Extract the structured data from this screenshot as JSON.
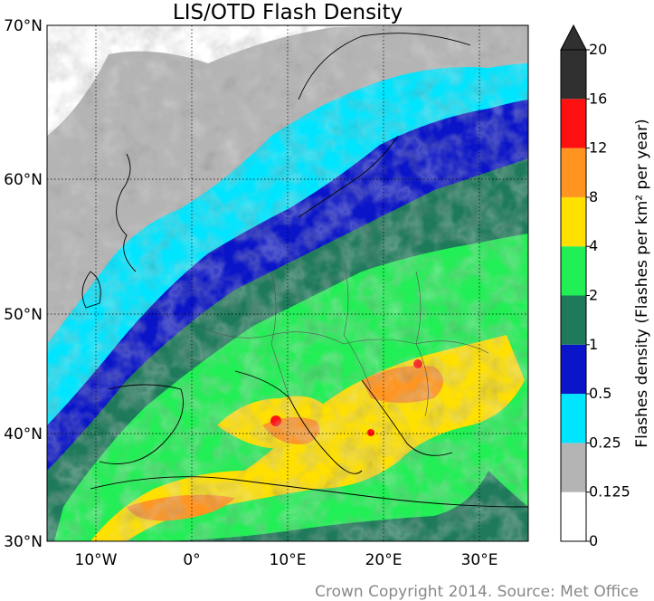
{
  "title": "LIS/OTD Flash Density",
  "footer": "Crown Copyright 2014. Source: Met Office",
  "colorbar": {
    "label": "Flashes density (Flashes per km² per year)",
    "ticks": [
      "0",
      "0.125",
      "0.25",
      "0.5",
      "1",
      "2",
      "4",
      "8",
      "12",
      "16",
      "20"
    ],
    "colors": [
      "#ffffff",
      "#b4b4b4",
      "#00e5ff",
      "#0a14c8",
      "#1e7a5a",
      "#22ee55",
      "#ffe000",
      "#ff9520",
      "#ff1010",
      "#303030"
    ],
    "extend": "max"
  },
  "map": {
    "lon_ticks": [
      "10°W",
      "0°",
      "10°E",
      "20°E",
      "30°E"
    ],
    "lat_ticks": [
      "70°N",
      "60°N",
      "50°N",
      "40°N",
      "30°N"
    ],
    "lon_values": [
      -10,
      0,
      10,
      20,
      30
    ],
    "lat_values": [
      70,
      60,
      50,
      40,
      30
    ],
    "lon_range": [
      -15,
      35
    ],
    "lat_range": [
      30,
      70
    ],
    "grid": true
  }
}
